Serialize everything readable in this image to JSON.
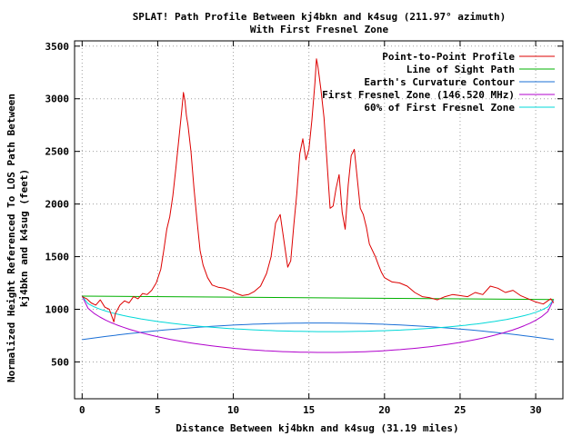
{
  "chart_data": {
    "type": "line",
    "title_line1": "SPLAT! Path Profile Between kj4bkn and k4sug (211.97° azimuth)",
    "title_line2": "With First Fresnel Zone",
    "xlabel": "Distance Between kj4bkn and k4sug (31.19 miles)",
    "ylabel_line1": "Normalized Height Referenced To LOS Path Between",
    "ylabel_line2": "kj4bkn and k4sug (feet)",
    "xlim": [
      -0.5,
      31.8
    ],
    "ylim": [
      150,
      3550
    ],
    "xticks": [
      0,
      5,
      10,
      15,
      20,
      25,
      30
    ],
    "yticks": [
      500,
      1000,
      1500,
      2000,
      2500,
      3000,
      3500
    ],
    "grid": true,
    "legend_position": "top-right",
    "colors": {
      "profile": "#dd0000",
      "los": "#00b000",
      "earth": "#1a6fd6",
      "fresnel": "#b000cc",
      "fresnel60": "#00d8d8",
      "grid": "#a0a0a0",
      "axis": "#000000"
    },
    "series": [
      {
        "name": "Point-to-Point Profile",
        "key": "profile",
        "x": [
          0,
          0.3,
          0.6,
          0.9,
          1.2,
          1.5,
          1.8,
          2.1,
          2.2,
          2.5,
          2.8,
          3.1,
          3.4,
          3.7,
          4.0,
          4.3,
          4.6,
          4.9,
          5.2,
          5.4,
          5.6,
          5.8,
          6.0,
          6.2,
          6.4,
          6.6,
          6.7,
          6.8,
          6.9,
          7.0,
          7.2,
          7.4,
          7.6,
          7.8,
          8.0,
          8.3,
          8.6,
          9.0,
          9.4,
          9.8,
          10.2,
          10.6,
          11.0,
          11.4,
          11.8,
          12.2,
          12.5,
          12.8,
          13.1,
          13.4,
          13.6,
          13.8,
          14.0,
          14.2,
          14.4,
          14.6,
          14.8,
          15.0,
          15.2,
          15.4,
          15.5,
          15.6,
          15.8,
          16.0,
          16.2,
          16.4,
          16.6,
          16.8,
          17.0,
          17.2,
          17.4,
          17.6,
          17.8,
          18.0,
          18.2,
          18.4,
          18.6,
          18.8,
          19.0,
          19.2,
          19.4,
          19.6,
          19.8,
          20.0,
          20.5,
          21.0,
          21.5,
          22.0,
          22.5,
          23.0,
          23.5,
          24.0,
          24.5,
          25.0,
          25.5,
          26.0,
          26.5,
          27.0,
          27.5,
          28.0,
          28.5,
          29.0,
          29.5,
          30.0,
          30.5,
          30.8,
          31.0,
          31.19
        ],
        "y": [
          1120,
          1100,
          1060,
          1040,
          1090,
          1020,
          1000,
          880,
          960,
          1040,
          1080,
          1060,
          1120,
          1100,
          1150,
          1140,
          1180,
          1250,
          1380,
          1560,
          1760,
          1880,
          2080,
          2340,
          2620,
          2900,
          3060,
          2980,
          2840,
          2750,
          2500,
          2150,
          1840,
          1560,
          1420,
          1300,
          1230,
          1210,
          1200,
          1180,
          1150,
          1130,
          1140,
          1170,
          1220,
          1340,
          1500,
          1820,
          1900,
          1600,
          1400,
          1460,
          1800,
          2100,
          2480,
          2620,
          2420,
          2520,
          2800,
          3150,
          3380,
          3300,
          3080,
          2820,
          2400,
          1960,
          1980,
          2150,
          2280,
          1920,
          1760,
          2180,
          2460,
          2520,
          2240,
          1960,
          1900,
          1780,
          1620,
          1560,
          1500,
          1420,
          1350,
          1300,
          1260,
          1250,
          1220,
          1160,
          1120,
          1110,
          1090,
          1120,
          1140,
          1130,
          1120,
          1160,
          1140,
          1220,
          1200,
          1160,
          1180,
          1130,
          1100,
          1070,
          1050,
          1080,
          1100,
          1060
        ]
      },
      {
        "name": "Line of Sight Path",
        "key": "los",
        "type": "line",
        "x": [
          0,
          31.19
        ],
        "y": [
          1125,
          1093
        ]
      },
      {
        "name": "Earth's Curvature Contour",
        "key": "earth",
        "type": "arc",
        "x": [
          0,
          15.6,
          31.19
        ],
        "y": [
          712,
          870,
          712
        ]
      },
      {
        "name": "First Fresnel Zone (146.520 MHz)",
        "key": "fresnel",
        "type": "ellipse-lower",
        "x": [
          0,
          15.6,
          31.19
        ],
        "y": [
          1125,
          590,
          1093
        ]
      },
      {
        "name": "60% of First Fresnel Zone",
        "key": "fresnel60",
        "type": "ellipse-lower",
        "x": [
          0,
          15.6,
          31.19
        ],
        "y": [
          1125,
          788,
          1093
        ]
      }
    ]
  }
}
